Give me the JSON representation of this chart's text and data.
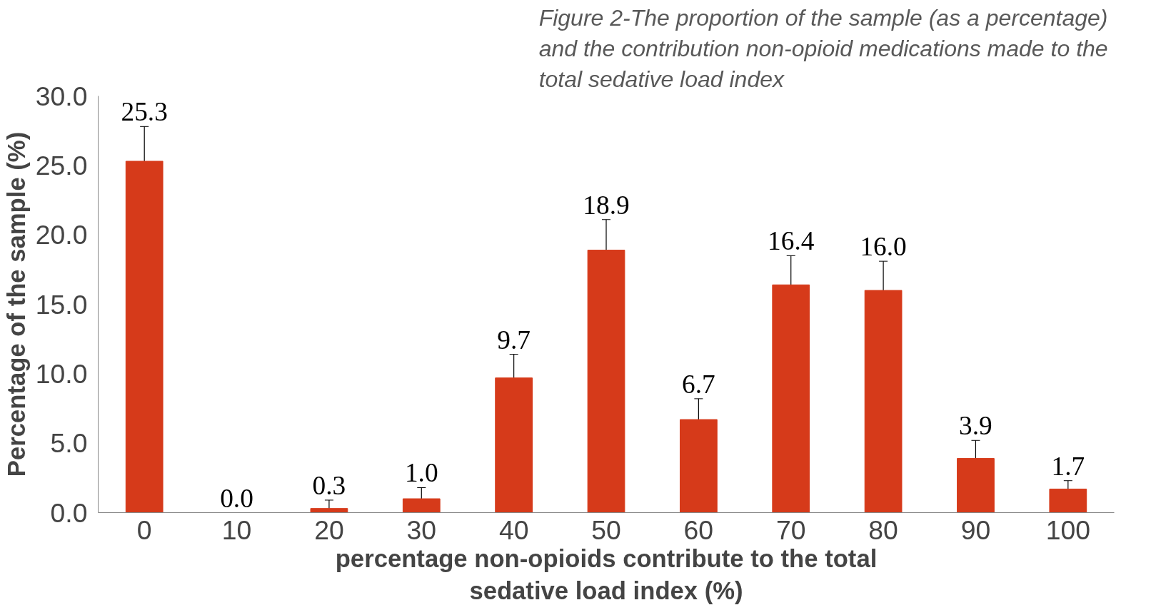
{
  "chart_data": {
    "type": "bar",
    "title": "Figure 2-The proportion of the sample (as a percentage)\nand the contribution  non-opioid medications made to the\ntotal sedative load index",
    "xlabel": "percentage non-opioids contribute to the total\nsedative load index (%)",
    "ylabel": "Percentage of the sample (%)",
    "categories": [
      "0",
      "10",
      "20",
      "30",
      "40",
      "50",
      "60",
      "70",
      "80",
      "90",
      "100"
    ],
    "values": [
      25.3,
      0.0,
      0.3,
      1.0,
      9.7,
      18.9,
      6.7,
      16.4,
      16.0,
      3.9,
      1.7
    ],
    "errors": [
      2.5,
      null,
      [
        0.1,
        0.9
      ],
      0.8,
      1.7,
      2.2,
      1.5,
      2.1,
      2.1,
      1.3,
      0.6
    ],
    "color": "#d63a1a",
    "ylim": [
      0,
      30
    ],
    "yticks": [
      {
        "value": 0,
        "label": "0.0"
      },
      {
        "value": 5,
        "label": "5.0"
      },
      {
        "value": 10,
        "label": "10.0"
      },
      {
        "value": 15,
        "label": "15.0"
      },
      {
        "value": 20,
        "label": "20.0"
      },
      {
        "value": 25,
        "label": "25.0"
      },
      {
        "value": 30,
        "label": "30.0"
      }
    ],
    "value_labels": [
      "25.3",
      "0.0",
      "0.3",
      "1.0",
      "9.7",
      "18.9",
      "6.7",
      "16.4",
      "16.0",
      "3.9",
      "1.7"
    ],
    "grid": false
  }
}
